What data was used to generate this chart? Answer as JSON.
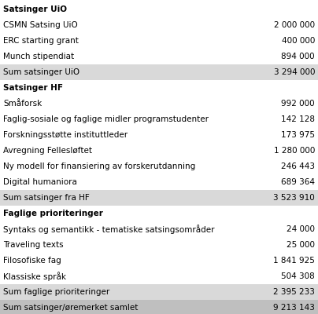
{
  "rows": [
    {
      "label": "Satsinger UiO",
      "value": "",
      "bold": true,
      "shaded": false,
      "shade_level": 0
    },
    {
      "label": "CSMN Satsing UiO",
      "value": "2 000 000",
      "bold": false,
      "shaded": false,
      "shade_level": 0
    },
    {
      "label": "ERC starting grant",
      "value": "400 000",
      "bold": false,
      "shaded": false,
      "shade_level": 0
    },
    {
      "label": "Munch stipendiat",
      "value": "894 000",
      "bold": false,
      "shaded": false,
      "shade_level": 0
    },
    {
      "label": "Sum satsinger UiO",
      "value": "3 294 000",
      "bold": false,
      "shaded": true,
      "shade_level": 1
    },
    {
      "label": "Satsinger HF",
      "value": "",
      "bold": true,
      "shaded": false,
      "shade_level": 0
    },
    {
      "label": "Småforsk",
      "value": "992 000",
      "bold": false,
      "shaded": false,
      "shade_level": 0
    },
    {
      "label": "Faglig-sosiale og faglige midler programstudenter",
      "value": "142 128",
      "bold": false,
      "shaded": false,
      "shade_level": 0
    },
    {
      "label": "Forskningsstøtte instituttleder",
      "value": "173 975",
      "bold": false,
      "shaded": false,
      "shade_level": 0
    },
    {
      "label": "Avregning Fellesløftet",
      "value": "1 280 000",
      "bold": false,
      "shaded": false,
      "shade_level": 0
    },
    {
      "label": "Ny modell for finansiering av forskerutdanning",
      "value": "246 443",
      "bold": false,
      "shaded": false,
      "shade_level": 0
    },
    {
      "label": "Digital humaniora",
      "value": "689 364",
      "bold": false,
      "shaded": false,
      "shade_level": 0
    },
    {
      "label": "Sum satsinger fra HF",
      "value": "3 523 910",
      "bold": false,
      "shaded": true,
      "shade_level": 1
    },
    {
      "label": "Faglige prioriteringer",
      "value": "",
      "bold": true,
      "shaded": false,
      "shade_level": 0
    },
    {
      "label": "Syntaks og semantikk - tematiske satsingsområder",
      "value": "24 000",
      "bold": false,
      "shaded": false,
      "shade_level": 0
    },
    {
      "label": "Traveling texts",
      "value": "25 000",
      "bold": false,
      "shaded": false,
      "shade_level": 0
    },
    {
      "label": "Filosofiske fag",
      "value": "1 841 925",
      "bold": false,
      "shaded": false,
      "shade_level": 0
    },
    {
      "label": "Klassiske språk",
      "value": "504 308",
      "bold": false,
      "shaded": false,
      "shade_level": 0
    },
    {
      "label": "Sum faglige prioriteringer",
      "value": "2 395 233",
      "bold": false,
      "shaded": true,
      "shade_level": 1
    },
    {
      "label": "Sum satsinger/øremerket samlet",
      "value": "9 213 143",
      "bold": false,
      "shaded": true,
      "shade_level": 2
    }
  ],
  "bg_color": "#ffffff",
  "shaded_color_1": "#d9d9d9",
  "shaded_color_2": "#bfbfbf",
  "text_color": "#000000",
  "font_size": 7.5,
  "fig_width": 4.04,
  "fig_height": 4.0,
  "dpi": 100
}
